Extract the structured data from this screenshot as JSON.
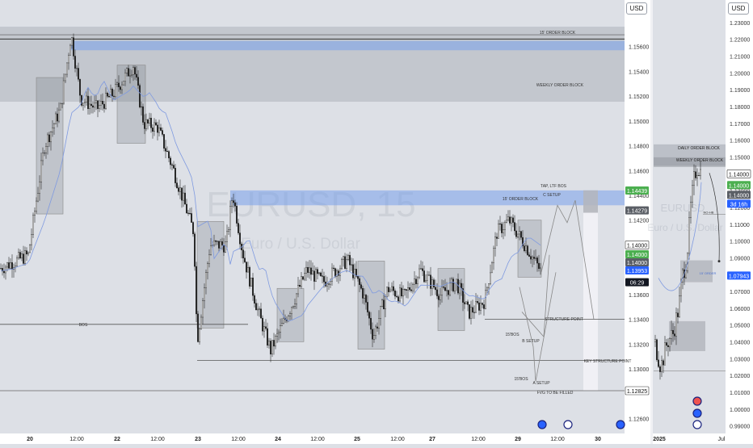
{
  "currency": "USD",
  "watermark": {
    "symbol": "EURUSD, 15",
    "name": "Euro / U.S. Dollar"
  },
  "left_chart": {
    "price_min": 1.1248,
    "price_max": 1.1578,
    "price_ticks": [
      "1.15600",
      "1.15400",
      "1.15200",
      "1.15000",
      "1.14800",
      "1.14600",
      "1.14400",
      "1.14200",
      "1.14000",
      "1.13800",
      "1.13600",
      "1.13400",
      "1.13200",
      "1.13000",
      "1.12600"
    ],
    "date_ticks": [
      "20",
      "12:00",
      "22",
      "12:00",
      "23",
      "12:00",
      "24",
      "12:00",
      "25",
      "12:00",
      "27",
      "12:00",
      "29",
      "12:00",
      "30"
    ],
    "price_badges": [
      {
        "text": "1.14439",
        "price": 1.14439,
        "kind": "green"
      },
      {
        "text": "1.14279",
        "price": 1.14279,
        "kind": "dark"
      },
      {
        "text": "1.14000",
        "price": 1.14,
        "kind": "white"
      },
      {
        "text": "1.14000",
        "price": 1.13925,
        "kind": "green"
      },
      {
        "text": "1.14000",
        "price": 1.1386,
        "kind": "dark"
      },
      {
        "text": "1.13953",
        "price": 1.13795,
        "kind": "blue"
      },
      {
        "text": "06:29",
        "price": 1.137,
        "kind": "black"
      },
      {
        "text": "1.12825",
        "price": 1.12825,
        "kind": "white"
      }
    ],
    "annotations": [
      "15' ORDER BLOCK",
      "WEEKLY ORDER BLOCK",
      "TAP, LTF BOS",
      "C SETUP",
      "15' ORDER BLOCK",
      "BOS",
      "STRUCTURE POINT",
      "15'BOS",
      "B SETUP",
      "KEY STRUCTURE POINT",
      "15'BOS",
      "A SETUP",
      "FVG TO BE FILLED"
    ]
  },
  "right_chart": {
    "price_min": 0.9855,
    "price_max": 1.2362,
    "price_ticks": [
      "1.23000",
      "1.22000",
      "1.21000",
      "1.20000",
      "1.19000",
      "1.18000",
      "1.17000",
      "1.16000",
      "1.15000",
      "1.14000",
      "1.13000",
      "1.12000",
      "1.11000",
      "1.10000",
      "1.09000",
      "1.08000",
      "1.07000",
      "1.06000",
      "1.05000",
      "1.04000",
      "1.03000",
      "1.02000",
      "1.01000",
      "1.00000",
      "0.99000"
    ],
    "date_ticks": [
      "2025",
      "Jul"
    ],
    "price_badges": [
      {
        "text": "1.14000",
        "price": 1.14,
        "kind": "white"
      },
      {
        "text": "1.14000",
        "price": 1.1333,
        "kind": "green"
      },
      {
        "text": "1.14000",
        "price": 1.1275,
        "kind": "dark"
      },
      {
        "text": "3d 16h",
        "price": 1.1222,
        "kind": "blue"
      },
      {
        "text": "1.07943",
        "price": 1.07943,
        "kind": "blue"
      }
    ],
    "annotations": [
      "DAILY ORDER BLOCK",
      "WEEKLY ORDER BLOCK",
      "NO-HB",
      "15' ORDER"
    ]
  },
  "colors": {
    "up": "#27a69a",
    "down": "#ef5350",
    "badge_green": "#4caf50",
    "badge_blue": "#2962ff",
    "bg": "#dde0e6"
  }
}
